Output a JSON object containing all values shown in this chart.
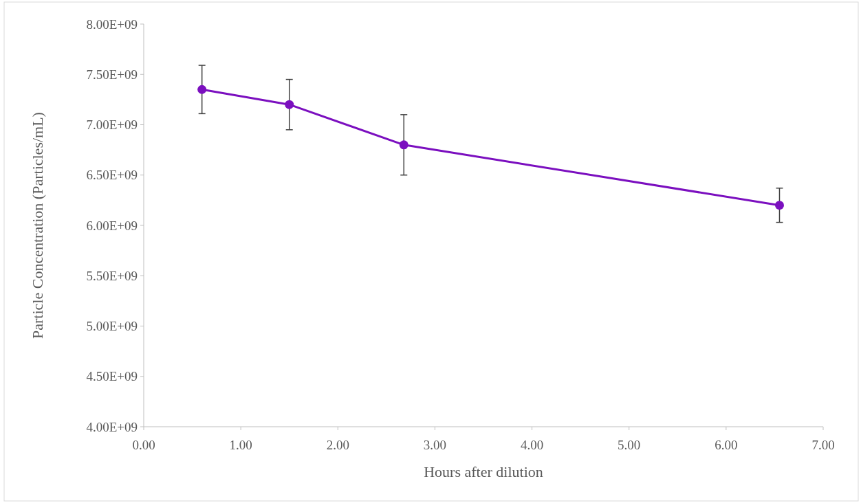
{
  "chart_data": {
    "type": "line",
    "xlabel": "Hours after dilution",
    "ylabel": "Particle Concentration (Particles/mL)",
    "x": [
      0.6,
      1.5,
      2.68,
      6.55
    ],
    "series": [
      {
        "color": "#7b0fbf",
        "values": [
          7350000000,
          7200000000,
          6800000000,
          6200000000
        ],
        "errors": [
          240000000,
          250000000,
          300000000,
          170000000
        ]
      }
    ],
    "xlim": [
      0,
      7
    ],
    "xticks": [
      {
        "value": 0,
        "label": "0.00"
      },
      {
        "value": 1,
        "label": "1.00"
      },
      {
        "value": 2,
        "label": "2.00"
      },
      {
        "value": 3,
        "label": "3.00"
      },
      {
        "value": 4,
        "label": "4.00"
      },
      {
        "value": 5,
        "label": "5.00"
      },
      {
        "value": 6,
        "label": "6.00"
      },
      {
        "value": 7,
        "label": "7.00"
      }
    ],
    "ylim": [
      4000000000,
      8000000000
    ],
    "yticks": [
      {
        "value": 4000000000,
        "label": "4.00E+09"
      },
      {
        "value": 4500000000,
        "label": "4.50E+09"
      },
      {
        "value": 5000000000,
        "label": "5.00E+09"
      },
      {
        "value": 5500000000,
        "label": "5.50E+09"
      },
      {
        "value": 6000000000,
        "label": "6.00E+09"
      },
      {
        "value": 6500000000,
        "label": "6.50E+09"
      },
      {
        "value": 7000000000,
        "label": "7.00E+09"
      },
      {
        "value": 7500000000,
        "label": "7.50E+09"
      },
      {
        "value": 8000000000,
        "label": "8.00E+09"
      }
    ],
    "marker": "circle",
    "line_style": "solid"
  }
}
